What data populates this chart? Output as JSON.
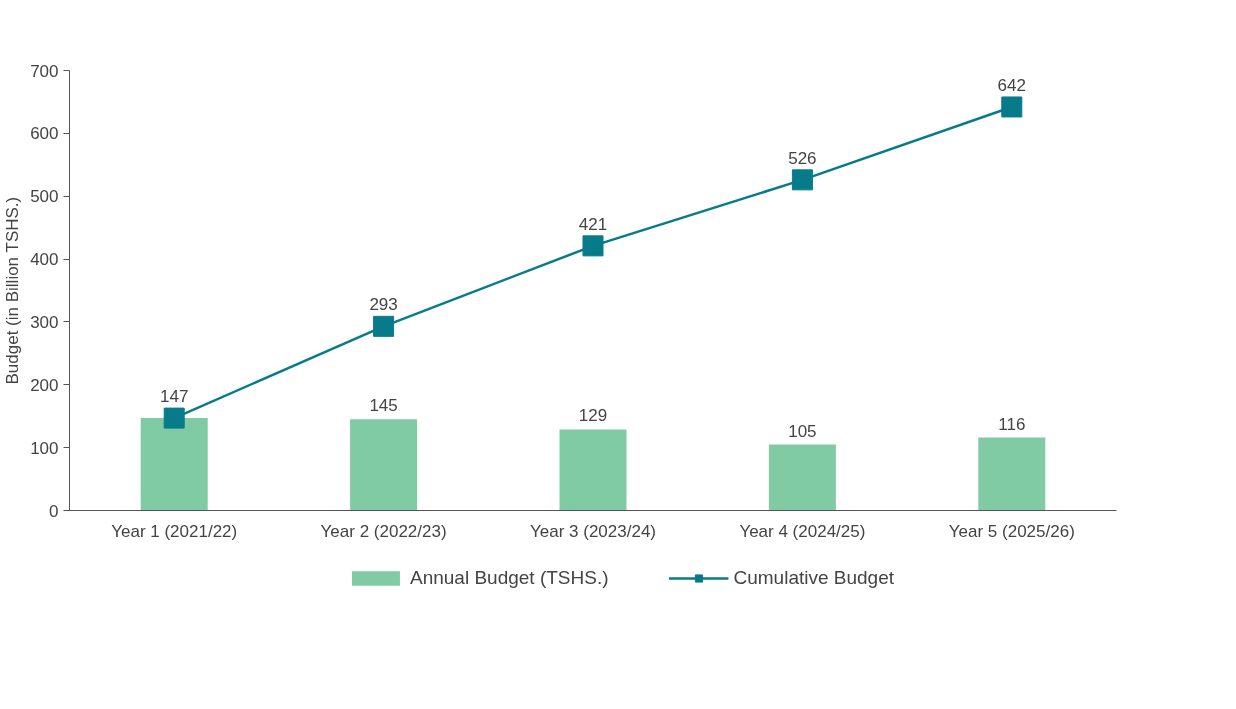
{
  "chart_data": {
    "type": "bar",
    "ylabel": "Budget (in Billion TSHS.)",
    "categories": [
      "Year 1 (2021/22)",
      "Year 2 (2022/23)",
      "Year 3 (2023/24)",
      "Year 4 (2024/25)",
      "Year 5 (2025/26)"
    ],
    "series": [
      {
        "name": "Annual Budget (TSHS.)",
        "color": "#80cba4",
        "values": [
          147,
          145,
          129,
          105,
          116
        ],
        "value_labels": [
          null,
          "145",
          "129",
          "105",
          "116"
        ]
      },
      {
        "name": "Cumulative Budget",
        "type": "line",
        "color": "#077b8a",
        "marker": "square",
        "values": [
          147,
          293,
          421,
          526,
          642
        ],
        "value_labels": [
          "147",
          "293",
          "421",
          "526",
          "642"
        ]
      }
    ],
    "ylim": [
      0,
      700
    ],
    "yticks": [
      0,
      100,
      200,
      300,
      400,
      500,
      600,
      700
    ],
    "grid": false,
    "legend": "bottom"
  }
}
